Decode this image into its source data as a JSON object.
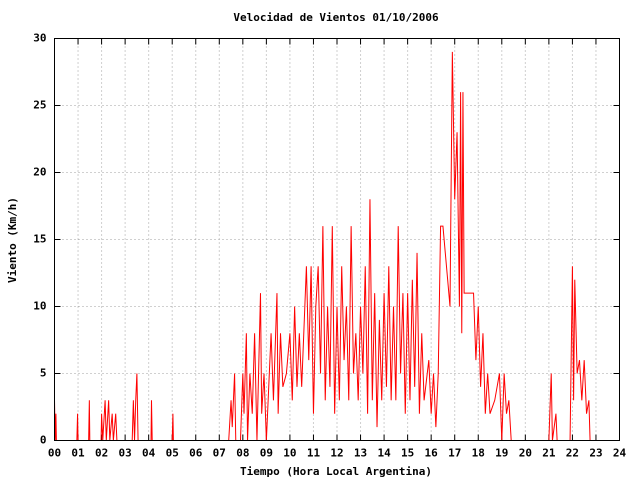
{
  "chart_data": {
    "type": "line",
    "title": "Velocidad de Vientos 01/10/2006",
    "x_label": "Tiempo (Hora Local Argentina)",
    "y_label": "Viento (Km/h)",
    "color": "#ff0000",
    "grid": true,
    "xlim": [
      0,
      24
    ],
    "ylim": [
      0,
      30
    ],
    "xticks": [
      {
        "value": 0,
        "label": "00"
      },
      {
        "value": 1,
        "label": "01"
      },
      {
        "value": 2,
        "label": "02"
      },
      {
        "value": 3,
        "label": "03"
      },
      {
        "value": 4,
        "label": "04"
      },
      {
        "value": 5,
        "label": "05"
      },
      {
        "value": 6,
        "label": "06"
      },
      {
        "value": 7,
        "label": "07"
      },
      {
        "value": 8,
        "label": "08"
      },
      {
        "value": 9,
        "label": "09"
      },
      10,
      11,
      12,
      13,
      14,
      15,
      16,
      17,
      18,
      19,
      20,
      21,
      22,
      23,
      24
    ],
    "yticks": [
      0,
      5,
      10,
      15,
      20,
      25,
      30
    ],
    "x": [
      0,
      0.03,
      0.06,
      0.08,
      0.95,
      0.98,
      1.0,
      1.45,
      1.48,
      1.5,
      1.98,
      2.0,
      2.05,
      2.15,
      2.2,
      2.3,
      2.35,
      2.45,
      2.5,
      2.6,
      2.65,
      3.3,
      3.35,
      3.4,
      3.45,
      3.5,
      3.55,
      4.1,
      4.12,
      4.15,
      5.0,
      5.03,
      5.05,
      7.4,
      7.5,
      7.55,
      7.65,
      7.7,
      7.9,
      8.0,
      8.05,
      8.15,
      8.2,
      8.3,
      8.4,
      8.5,
      8.6,
      8.75,
      8.8,
      8.9,
      9.0,
      9.2,
      9.3,
      9.45,
      9.5,
      9.6,
      9.7,
      9.85,
      10.0,
      10.1,
      10.2,
      10.3,
      10.4,
      10.5,
      10.7,
      10.8,
      10.9,
      11.0,
      11.1,
      11.2,
      11.3,
      11.4,
      11.5,
      11.6,
      11.7,
      11.8,
      11.9,
      12.0,
      12.1,
      12.2,
      12.3,
      12.4,
      12.5,
      12.6,
      12.7,
      12.8,
      12.9,
      13.0,
      13.1,
      13.2,
      13.3,
      13.4,
      13.5,
      13.6,
      13.7,
      13.8,
      13.9,
      14.0,
      14.1,
      14.2,
      14.3,
      14.4,
      14.5,
      14.6,
      14.7,
      14.8,
      14.9,
      15.0,
      15.1,
      15.2,
      15.3,
      15.4,
      15.5,
      15.6,
      15.7,
      15.9,
      16.0,
      16.1,
      16.2,
      16.3,
      16.4,
      16.5,
      16.6,
      16.7,
      16.8,
      16.9,
      17.0,
      17.1,
      17.2,
      17.25,
      17.3,
      17.35,
      17.4,
      17.6,
      17.8,
      17.9,
      18.0,
      18.1,
      18.2,
      18.3,
      18.4,
      18.5,
      18.7,
      18.9,
      19.0,
      19.1,
      19.2,
      19.3,
      19.4,
      21.0,
      21.1,
      21.15,
      21.3,
      21.35,
      21.9,
      22.0,
      22.05,
      22.1,
      22.2,
      22.3,
      22.4,
      22.5,
      22.6,
      22.7,
      22.75
    ],
    "values": [
      3,
      0,
      2,
      0,
      0,
      2,
      0,
      0,
      3,
      0,
      0,
      2,
      0,
      3,
      0,
      3,
      0,
      2,
      0,
      2,
      0,
      0,
      3,
      0,
      3,
      5,
      0,
      0,
      3,
      0,
      0,
      2,
      0,
      0,
      3,
      1,
      5,
      0,
      0,
      5,
      2,
      8,
      0,
      5,
      2,
      8,
      0,
      11,
      2,
      5,
      0,
      8,
      3,
      11,
      2,
      8,
      4,
      5,
      8,
      3,
      10,
      4,
      8,
      4,
      13,
      6,
      13,
      2,
      10,
      13,
      5,
      16,
      3,
      10,
      4,
      16,
      2,
      10,
      3,
      13,
      6,
      10,
      3,
      16,
      5,
      8,
      3,
      10,
      5,
      13,
      2,
      18,
      3,
      11,
      1,
      9,
      3,
      11,
      4,
      13,
      3,
      10,
      3,
      16,
      5,
      11,
      2,
      11,
      3,
      12,
      4,
      14,
      2,
      8,
      3,
      6,
      2,
      5,
      1,
      5,
      16,
      16,
      14,
      12,
      10,
      29,
      18,
      23,
      10,
      26,
      8,
      26,
      11,
      11,
      11,
      6,
      10,
      4,
      8,
      2,
      5,
      2,
      3,
      5,
      0,
      5,
      2,
      3,
      0,
      0,
      5,
      0,
      2,
      0,
      0,
      13,
      3,
      12,
      5,
      6,
      3,
      6,
      2,
      3,
      0
    ]
  }
}
